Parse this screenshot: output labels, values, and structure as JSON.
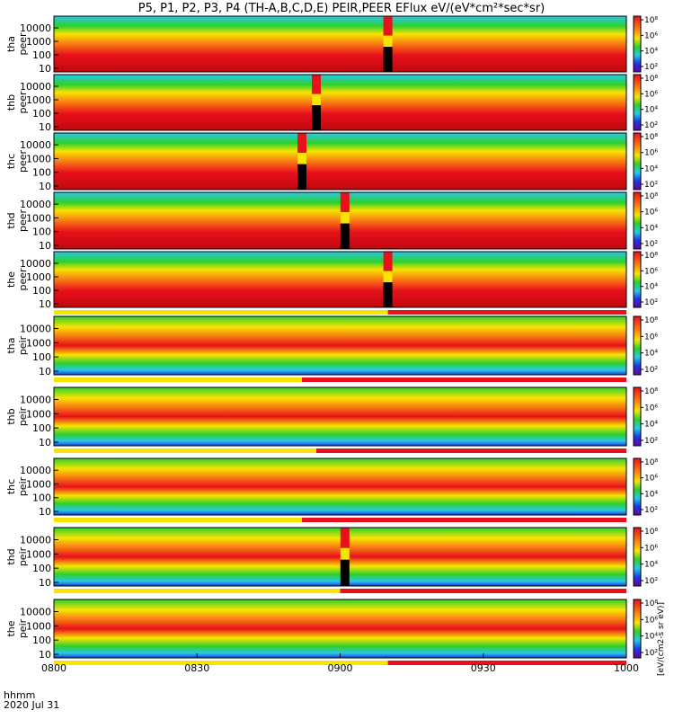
{
  "title": "P5, P1, P2, P3, P4 (TH-A,B,C,D,E) PEIR,PEER EFlux eV/(eV*cm²*sec*sr)",
  "footer": {
    "axis_unit": "hhmm",
    "date": "2020 Jul 31"
  },
  "colorbar_unit": "[eV/(cm2-s sr eV)]",
  "colors": {
    "red": "#e8101a",
    "orange": "#f97a14",
    "yellow": "#f7e400",
    "green": "#2ed02c",
    "cyan": "#28c8e8",
    "blue": "#1a38e0",
    "black": "#000000",
    "flag_red": "#e8101a",
    "flag_yellow": "#f7e400"
  },
  "chart_data": {
    "type": "heatmap",
    "x_ticks": [
      "0800",
      "0830",
      "0900",
      "0930",
      "1000"
    ],
    "x_range": [
      "08:00",
      "10:00"
    ],
    "y_scale": "log",
    "y_ticks": [
      "10",
      "100",
      "1000",
      "10000"
    ],
    "panels": [
      {
        "probe": "tha",
        "species": "peer",
        "gap_time": "09:10",
        "colorbar_ticks": [
          "10²",
          "10⁴",
          "10⁶",
          "10⁸"
        ]
      },
      {
        "probe": "thb",
        "species": "peer",
        "gap_time": "08:55",
        "colorbar_ticks": [
          "10²",
          "10⁴",
          "10⁶",
          "10⁸"
        ]
      },
      {
        "probe": "thc",
        "species": "peer",
        "gap_time": "08:52",
        "colorbar_ticks": [
          "10²",
          "10⁴",
          "10⁶",
          "10⁸"
        ]
      },
      {
        "probe": "thd",
        "species": "peer",
        "gap_time": "09:01",
        "colorbar_ticks": [
          "10²",
          "10⁴",
          "10⁶",
          "10⁸"
        ]
      },
      {
        "probe": "the",
        "species": "peer",
        "gap_time": "09:10",
        "colorbar_ticks": [
          "10²",
          "10⁴",
          "10⁶",
          "10⁸"
        ]
      },
      {
        "probe": "tha",
        "species": "peir",
        "colorbar_ticks": [
          "10²",
          "10⁴",
          "10⁶",
          "10⁸"
        ]
      },
      {
        "probe": "thb",
        "species": "peir",
        "colorbar_ticks": [
          "10²",
          "10⁴",
          "10⁶",
          "10⁸"
        ]
      },
      {
        "probe": "thc",
        "species": "peir",
        "colorbar_ticks": [
          "10²",
          "10⁴",
          "10⁶",
          "10⁸"
        ]
      },
      {
        "probe": "thd",
        "species": "peir",
        "gap_time": "09:01",
        "colorbar_ticks": [
          "10²",
          "10⁴",
          "10⁶",
          "10⁸"
        ]
      },
      {
        "probe": "the",
        "species": "peir",
        "colorbar_ticks": [
          "10²",
          "10⁴",
          "10⁶",
          "10⁸"
        ]
      }
    ],
    "flag_bars": [
      {
        "after_panel": 4,
        "yellow_until": "09:10"
      },
      {
        "after_panel": 5,
        "yellow_until": "08:52"
      },
      {
        "after_panel": 6,
        "yellow_until": "08:55"
      },
      {
        "after_panel": 7,
        "yellow_until": "08:52"
      },
      {
        "after_panel": 8,
        "yellow_until": "09:00"
      },
      {
        "after_panel": 9,
        "yellow_until": "09:10"
      }
    ]
  }
}
